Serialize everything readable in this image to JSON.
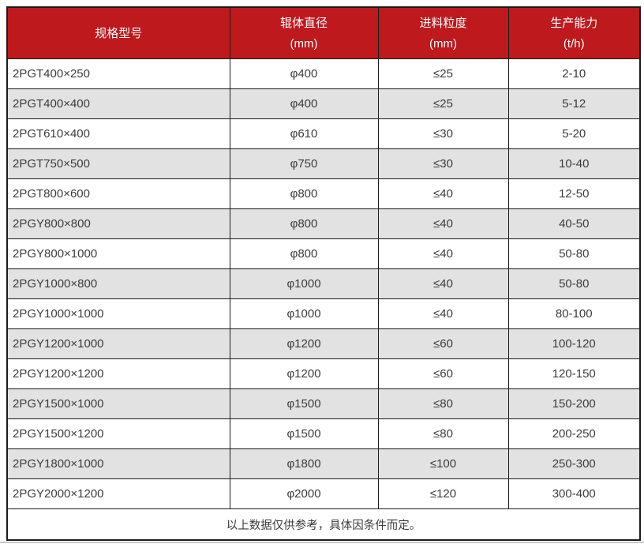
{
  "header": {
    "col1": "规格型号",
    "col2": {
      "title": "辊体直径",
      "unit": "(mm)"
    },
    "col3": {
      "title": "进料粒度",
      "unit": "(mm)"
    },
    "col4": {
      "title": "生产能力",
      "unit": "(t/h)"
    }
  },
  "chart_data": {
    "type": "table",
    "columns": [
      "规格型号",
      "辊体直径 (mm)",
      "进料粒度 (mm)",
      "生产能力 (t/h)"
    ],
    "rows": [
      [
        "2PGT400×250",
        "φ400",
        "≤25",
        "2-10"
      ],
      [
        "2PGT400×400",
        "φ400",
        "≤25",
        "5-12"
      ],
      [
        "2PGT610×400",
        "φ610",
        "≤30",
        "5-20"
      ],
      [
        "2PGT750×500",
        "φ750",
        "≤30",
        "10-40"
      ],
      [
        "2PGT800×600",
        "φ800",
        "≤40",
        "12-50"
      ],
      [
        "2PGY800×800",
        "φ800",
        "≤40",
        "40-50"
      ],
      [
        "2PGY800×1000",
        "φ800",
        "≤40",
        "50-80"
      ],
      [
        "2PGY1000×800",
        "φ1000",
        "≤40",
        "50-80"
      ],
      [
        "2PGY1000×1000",
        "φ1000",
        "≤40",
        "80-100"
      ],
      [
        "2PGY1200×1000",
        "φ1200",
        "≤60",
        "100-120"
      ],
      [
        "2PGY1200×1200",
        "φ1200",
        "≤60",
        "120-150"
      ],
      [
        "2PGY1500×1000",
        "φ1500",
        "≤80",
        "150-200"
      ],
      [
        "2PGY1500×1200",
        "φ1500",
        "≤80",
        "200-250"
      ],
      [
        "2PGY1800×1000",
        "φ1800",
        "≤100",
        "250-300"
      ],
      [
        "2PGY2000×1200",
        "φ2000",
        "≤120",
        "300-400"
      ]
    ],
    "footnote": "以上数据仅供参考，具体因条件而定。"
  },
  "colors": {
    "header_bg": "#be191d",
    "header_text": "#ffffff",
    "row_bg": "#ffffff",
    "row_alt_bg": "#e2e2e2",
    "border": "#1b1b1b",
    "text": "#3c3c3c",
    "page_edge_line": "#c7c7c7"
  }
}
